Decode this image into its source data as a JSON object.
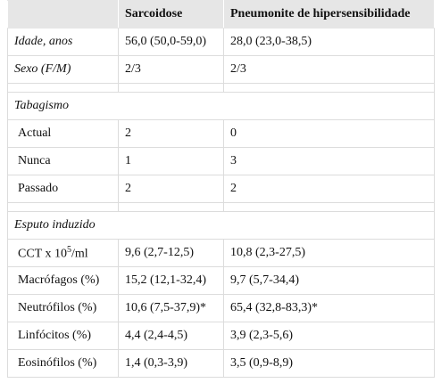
{
  "header": {
    "columns": [
      "Sarcoidose",
      "Pneumonite de hipersensibilidade"
    ]
  },
  "table": {
    "rows": [
      [
        "Idade, anos",
        "56,0 (50,0-59,0)",
        "28,0 (23,0-38,5)"
      ],
      [
        "Sexo (F/M)",
        "2/3",
        "2/3"
      ]
    ],
    "sections": [
      {
        "title": "Tabagismo",
        "rows": [
          [
            "Actual",
            "2",
            "0"
          ],
          [
            "Nunca",
            "1",
            "3"
          ],
          [
            "Passado",
            "2",
            "2"
          ]
        ]
      },
      {
        "title": "Esputo induzido",
        "rows": [
          [
            {
              "text": "CCT x 10",
              "sup": "5",
              "suffix": "/ml"
            },
            "9,6 (2,7-12,5)",
            "10,8 (2,3-27,5)"
          ],
          [
            "Macrófagos (%)",
            "15,2 (12,1-32,4)",
            "9,7 (5,7-34,4)"
          ],
          [
            "Neutrófilos (%)",
            "10,6 (7,5-37,9)*",
            "65,4 (32,8-83,3)*"
          ],
          [
            "Linfócitos (%)",
            "4,4 (2,4-4,5)",
            "3,9 (2,3-5,6)"
          ],
          [
            "Eosinófilos (%)",
            "1,4 (0,3-3,9)",
            "3,5 (0,9-8,9)"
          ]
        ]
      }
    ]
  }
}
